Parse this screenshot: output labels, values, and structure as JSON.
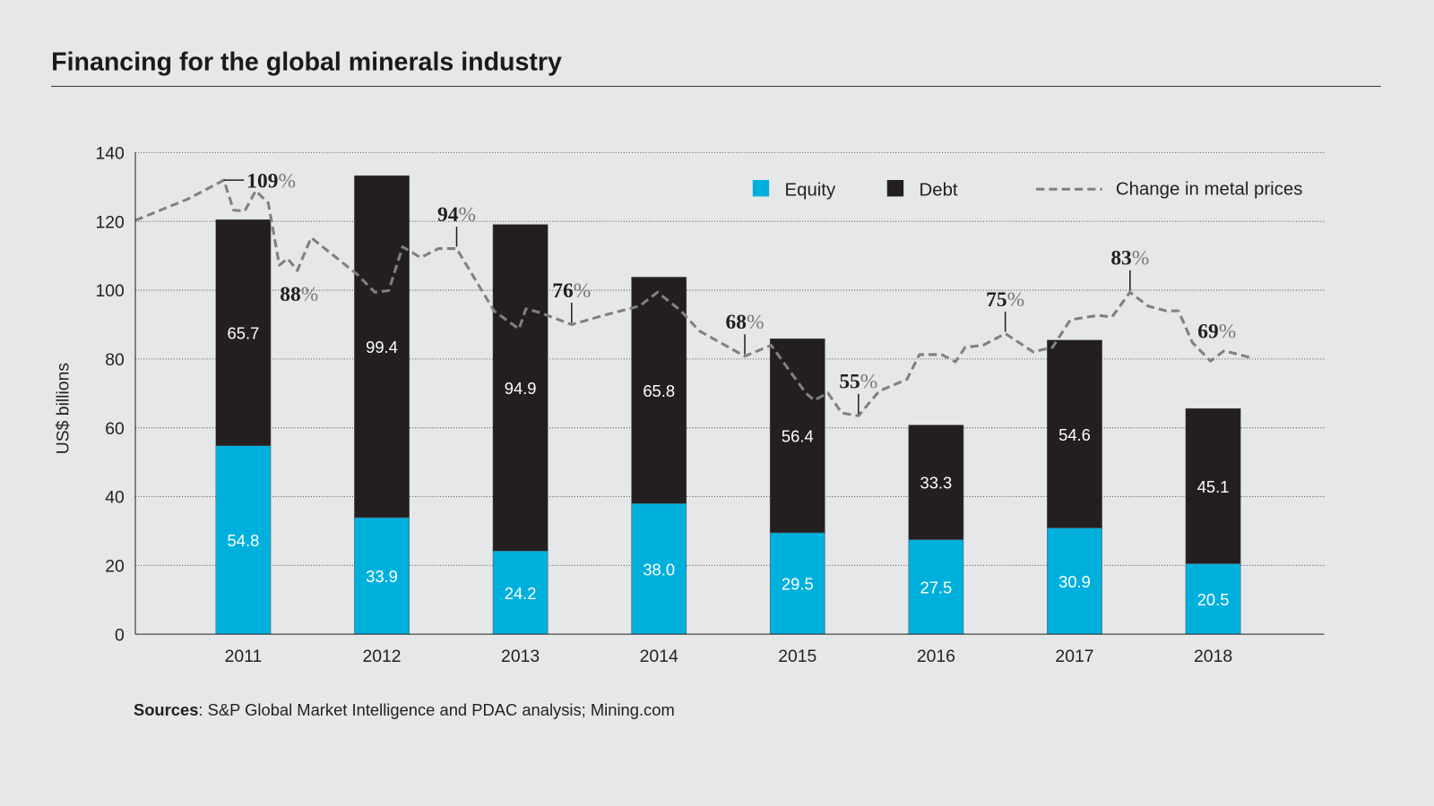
{
  "title": "Financing for the global minerals industry",
  "source": {
    "label": "Sources",
    "text": ": S&P Global Market Intelligence and PDAC analysis; Mining.com"
  },
  "chart_data": {
    "type": "bar",
    "stacked": true,
    "title": "Financing for the global minerals industry",
    "ylabel": "US$ billions",
    "xlabel": "",
    "ylim": [
      0,
      140
    ],
    "yticks": [
      0,
      20,
      40,
      60,
      80,
      100,
      120,
      140
    ],
    "grid": true,
    "legend_position": "top-right",
    "categories": [
      "2011",
      "2012",
      "2013",
      "2014",
      "2015",
      "2016",
      "2017",
      "2018"
    ],
    "series": [
      {
        "name": "Equity",
        "color": "#00b0dc",
        "values": [
          54.8,
          33.9,
          24.2,
          38.0,
          29.5,
          27.5,
          30.9,
          20.5
        ]
      },
      {
        "name": "Debt",
        "color": "#231f20",
        "values": [
          65.7,
          99.4,
          94.9,
          65.8,
          56.4,
          33.3,
          54.6,
          45.1
        ]
      }
    ],
    "line": {
      "name": "Change in metal prices",
      "color": "#808080",
      "style": "dashed",
      "points": [
        [
          2010.22,
          120.3
        ],
        [
          2010.6,
          126.5
        ],
        [
          2010.86,
          132
        ],
        [
          2010.93,
          123.3
        ],
        [
          2011.01,
          123
        ],
        [
          2011.09,
          128.9
        ],
        [
          2011.18,
          125.4
        ],
        [
          2011.26,
          107.3
        ],
        [
          2011.32,
          109.2
        ],
        [
          2011.39,
          105.7
        ],
        [
          2011.49,
          115.3
        ],
        [
          2011.82,
          104.7
        ],
        [
          2011.95,
          99.4
        ],
        [
          2012.05,
          99.9
        ],
        [
          2012.15,
          112.6
        ],
        [
          2012.28,
          109.5
        ],
        [
          2012.41,
          112.1
        ],
        [
          2012.54,
          112.1
        ],
        [
          2012.81,
          94
        ],
        [
          2012.99,
          88.7
        ],
        [
          2013.04,
          94.6
        ],
        [
          2013.14,
          93.5
        ],
        [
          2013.37,
          90
        ],
        [
          2013.6,
          92.7
        ],
        [
          2013.86,
          95.4
        ],
        [
          2013.99,
          99.4
        ],
        [
          2014.16,
          94
        ],
        [
          2014.29,
          88.2
        ],
        [
          2014.62,
          80.8
        ],
        [
          2014.81,
          84
        ],
        [
          2015.06,
          70.1
        ],
        [
          2015.12,
          68
        ],
        [
          2015.22,
          70.1
        ],
        [
          2015.32,
          64.3
        ],
        [
          2015.44,
          63.5
        ],
        [
          2015.59,
          70.7
        ],
        [
          2015.79,
          74.1
        ],
        [
          2015.88,
          81.3
        ],
        [
          2016.04,
          81.3
        ],
        [
          2016.14,
          79.2
        ],
        [
          2016.21,
          83.4
        ],
        [
          2016.34,
          84
        ],
        [
          2016.5,
          87.4
        ],
        [
          2016.7,
          82.1
        ],
        [
          2016.84,
          83.4
        ],
        [
          2016.97,
          91.4
        ],
        [
          2017.17,
          92.7
        ],
        [
          2017.27,
          92.2
        ],
        [
          2017.4,
          99.4
        ],
        [
          2017.53,
          95.4
        ],
        [
          2017.66,
          94
        ],
        [
          2017.75,
          94
        ],
        [
          2017.85,
          84.8
        ],
        [
          2017.98,
          79.4
        ],
        [
          2018.08,
          82.4
        ],
        [
          2018.29,
          80.2
        ]
      ],
      "annotations": [
        {
          "x": 2010.86,
          "y": 132,
          "value": "109",
          "unit": "%",
          "position": "right"
        },
        {
          "x": 2011.39,
          "y": 105.7,
          "value": "88",
          "unit": "%",
          "position": "below"
        },
        {
          "x": 2012.54,
          "y": 112.1,
          "value": "94",
          "unit": "%",
          "position": "above"
        },
        {
          "x": 2013.37,
          "y": 90,
          "value": "76",
          "unit": "%",
          "position": "above"
        },
        {
          "x": 2014.62,
          "y": 80.8,
          "value": "68",
          "unit": "%",
          "position": "above"
        },
        {
          "x": 2015.44,
          "y": 63.5,
          "value": "55",
          "unit": "%",
          "position": "above"
        },
        {
          "x": 2016.5,
          "y": 87.4,
          "value": "75",
          "unit": "%",
          "position": "above"
        },
        {
          "x": 2017.4,
          "y": 99.4,
          "value": "83",
          "unit": "%",
          "position": "above"
        },
        {
          "x": 2018.08,
          "y": 82.4,
          "value": "69",
          "unit": "%",
          "position": "above-plain"
        }
      ]
    },
    "legend": [
      "Equity",
      "Debt",
      "Change in metal prices"
    ]
  }
}
